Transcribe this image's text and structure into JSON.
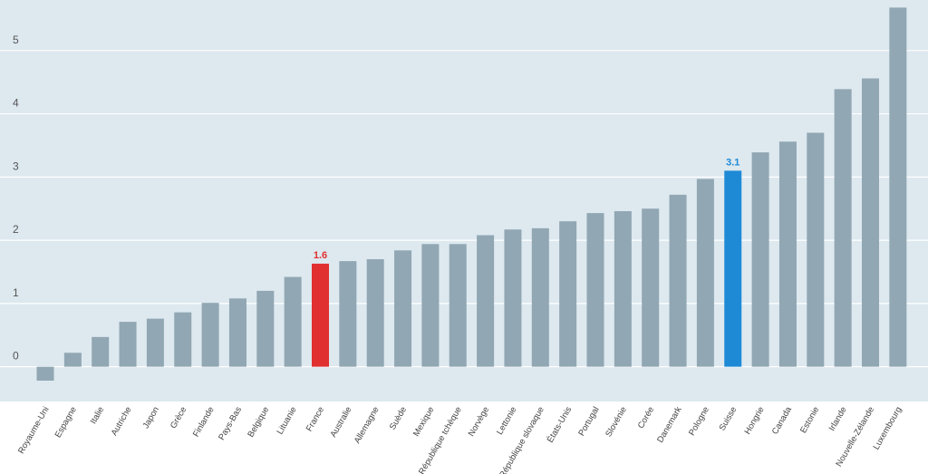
{
  "chart_data": {
    "type": "bar",
    "categories": [
      "Royaume-Uni",
      "Espagne",
      "Italie",
      "Autriche",
      "Japon",
      "Grèce",
      "Finlande",
      "Pays-Bas",
      "Belgique",
      "Lituanie",
      "France",
      "Australie",
      "Allemagne",
      "Suède",
      "Mexique",
      "République tchèque",
      "Norvège",
      "Lettonie",
      "République slovaque",
      "États-Unis",
      "Portugal",
      "Slovénie",
      "Corée",
      "Danemark",
      "Pologne",
      "Suisse",
      "Hongrie",
      "Canada",
      "Estonie",
      "Irlande",
      "Nouvelle-Zélande",
      "Luxembourg"
    ],
    "values": [
      -0.22,
      0.22,
      0.47,
      0.71,
      0.76,
      0.86,
      1.01,
      1.08,
      1.2,
      1.42,
      1.63,
      1.67,
      1.7,
      1.84,
      1.94,
      1.94,
      2.08,
      2.17,
      2.19,
      2.3,
      2.43,
      2.46,
      2.5,
      2.72,
      2.97,
      3.1,
      3.39,
      3.56,
      3.7,
      4.39,
      4.56,
      5.68
    ],
    "ylim": [
      -0.55,
      5.8
    ],
    "yticks": [
      "0",
      "1",
      "2",
      "3",
      "4",
      "5"
    ],
    "grid": true,
    "highlights": [
      {
        "category": "France",
        "label": "1.6",
        "color": "#e03030"
      },
      {
        "category": "Suisse",
        "label": "3.1",
        "color": "#1e8ad6"
      }
    ],
    "colors": {
      "default_bar": "#91a7b3",
      "plot_background": "#dde8ef",
      "gridline": "#ffffff"
    }
  }
}
